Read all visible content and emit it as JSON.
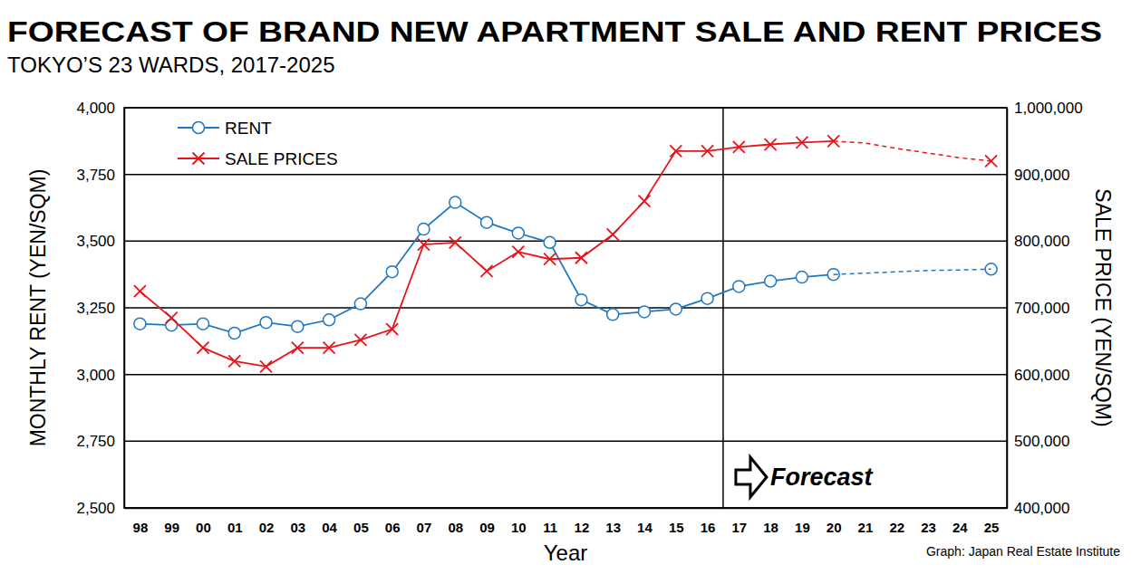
{
  "chart_data": {
    "type": "line",
    "title": "FORECAST OF BRAND NEW APARTMENT SALE AND RENT PRICES",
    "subtitle": "TOKYO’S 23 WARDS, 2017-2025",
    "x_label": "Year",
    "y_label": "MONTHLY RENT (YEN/SQM)",
    "y2_label": "SALE PRICE (YEN/SQM)",
    "source": "Graph: Japan Real Estate Institute",
    "categories": [
      "98",
      "99",
      "00",
      "01",
      "02",
      "03",
      "04",
      "05",
      "06",
      "07",
      "08",
      "09",
      "10",
      "11",
      "12",
      "13",
      "14",
      "15",
      "16",
      "17",
      "18",
      "19",
      "20",
      "21",
      "22",
      "23",
      "24",
      "25"
    ],
    "series": [
      {
        "name": "RENT",
        "color": "#1f78c1",
        "marker": "circle",
        "line_style": "solid",
        "axis": "y",
        "values": [
          3190,
          3185,
          3190,
          3155,
          3195,
          3180,
          3205,
          3265,
          3385,
          3545,
          3645,
          3570,
          3530,
          3495,
          3280,
          3225,
          3235,
          3245,
          3285,
          3330,
          3350,
          3365,
          3375,
          null,
          null,
          null,
          null,
          3395
        ]
      },
      {
        "name": "SALE PRICES",
        "color": "#e8141b",
        "marker": "x",
        "line_style": "solid",
        "axis": "y2",
        "values": [
          725000,
          685000,
          640000,
          620000,
          612000,
          640000,
          640000,
          652000,
          668000,
          795000,
          798000,
          755000,
          784000,
          773000,
          775000,
          810000,
          860000,
          935000,
          935000,
          941000,
          945000,
          948000,
          950000,
          null,
          null,
          null,
          null,
          920000
        ]
      },
      {
        "color": "#1f78c1",
        "marker": "none",
        "line_style": "dashed",
        "axis": "y",
        "values": [
          null,
          null,
          null,
          null,
          null,
          null,
          null,
          null,
          null,
          null,
          null,
          null,
          null,
          null,
          null,
          null,
          null,
          null,
          null,
          null,
          null,
          null,
          3375,
          3380,
          3385,
          3390,
          3392,
          3395
        ]
      },
      {
        "color": "#e8141b",
        "marker": "none",
        "line_style": "dashed",
        "axis": "y2",
        "values": [
          null,
          null,
          null,
          null,
          null,
          null,
          null,
          null,
          null,
          null,
          null,
          null,
          null,
          null,
          null,
          null,
          null,
          null,
          null,
          null,
          null,
          null,
          950000,
          947000,
          939000,
          932000,
          925000,
          920000
        ]
      }
    ],
    "ylim": [
      2500,
      4000
    ],
    "yticks": [
      {
        "value": 2500,
        "label": "2,500"
      },
      {
        "value": 2750,
        "label": "2,750"
      },
      {
        "value": 3000,
        "label": "3,000"
      },
      {
        "value": 3250,
        "label": "3,250"
      },
      {
        "value": 3500,
        "label": "3,500"
      },
      {
        "value": 3750,
        "label": "3,750"
      },
      {
        "value": 4000,
        "label": "4,000"
      }
    ],
    "y2lim": [
      400000,
      1000000
    ],
    "y2ticks": [
      {
        "value": 400000,
        "label": "400,000"
      },
      {
        "value": 500000,
        "label": "500,000"
      },
      {
        "value": 600000,
        "label": "600,000"
      },
      {
        "value": 700000,
        "label": "700,000"
      },
      {
        "value": 800000,
        "label": "800,000"
      },
      {
        "value": 900000,
        "label": "900,000"
      },
      {
        "value": 1000000,
        "label": "1,000,000"
      }
    ],
    "grid": true,
    "legend": "upper left",
    "annotations": [
      {
        "text": "Forecast",
        "category": "17"
      }
    ]
  }
}
